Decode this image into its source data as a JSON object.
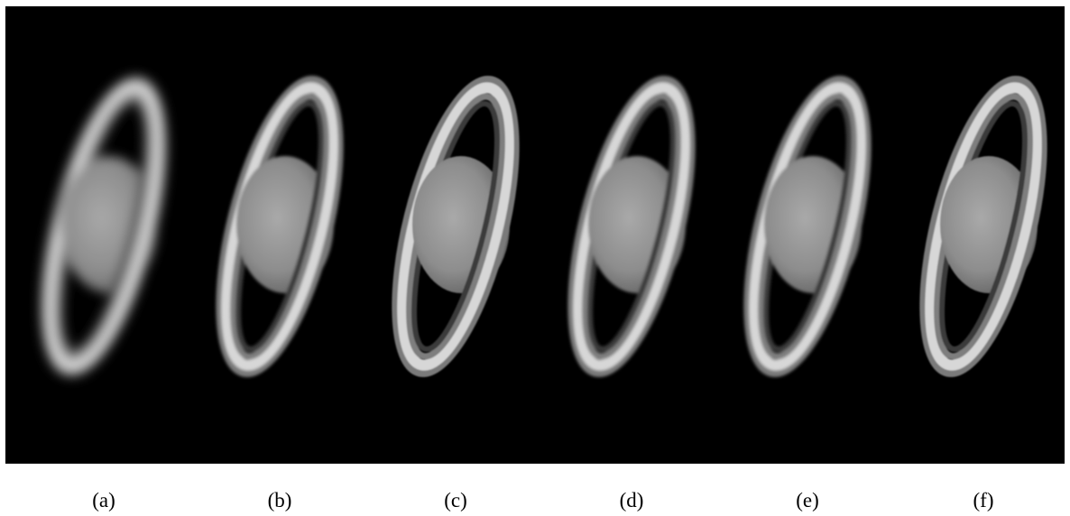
{
  "figure": {
    "background_color": "#000000",
    "panels": [
      {
        "label": "(a)",
        "blur": "high"
      },
      {
        "label": "(b)",
        "blur": "low"
      },
      {
        "label": "(c)",
        "blur": "none"
      },
      {
        "label": "(d)",
        "blur": "low"
      },
      {
        "label": "(e)",
        "blur": "low"
      },
      {
        "label": "(f)",
        "blur": "none"
      }
    ]
  }
}
